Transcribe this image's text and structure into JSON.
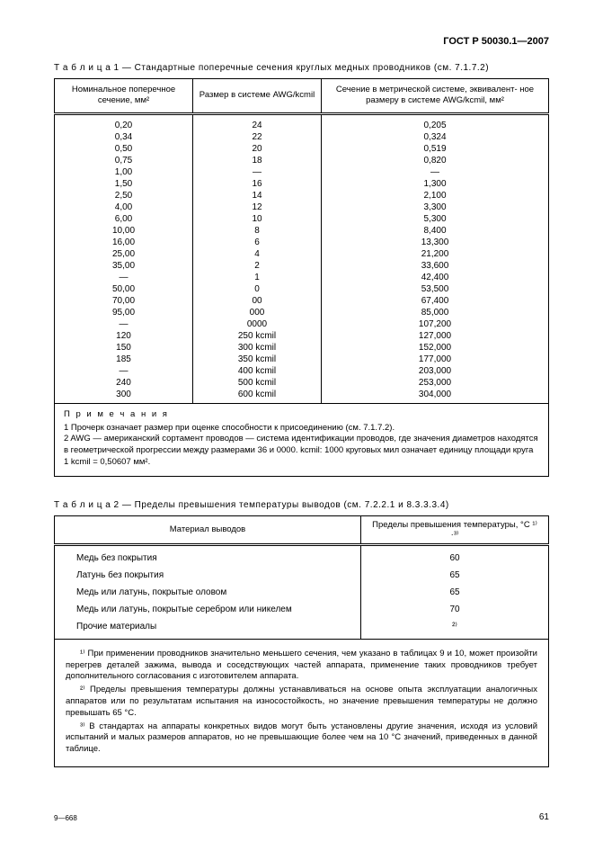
{
  "doc_id": "ГОСТ Р 50030.1—2007",
  "table1": {
    "caption": "Т а б л и ц а  1 — Стандартные поперечные сечения круглых медных проводников (см. 7.1.7.2)",
    "headers": {
      "c1": "Номинальное поперечное\nсечение, мм²",
      "c2": "Размер в системе\nAWG/kcmil",
      "c3": "Сечение в метрической системе, эквивалент-\nное размеру в системе AWG/kcmil, мм²"
    },
    "rows": [
      {
        "a": "0,20",
        "b": "24",
        "c": "0,205"
      },
      {
        "a": "0,34",
        "b": "22",
        "c": "0,324"
      },
      {
        "a": "0,50",
        "b": "20",
        "c": "0,519"
      },
      {
        "a": "0,75",
        "b": "18",
        "c": "0,820"
      },
      {
        "a": "1,00",
        "b": "—",
        "c": "—"
      },
      {
        "a": "1,50",
        "b": "16",
        "c": "1,300"
      },
      {
        "a": "2,50",
        "b": "14",
        "c": "2,100"
      },
      {
        "a": "4,00",
        "b": "12",
        "c": "3,300"
      },
      {
        "a": "6,00",
        "b": "10",
        "c": "5,300"
      },
      {
        "a": "10,00",
        "b": "8",
        "c": "8,400"
      },
      {
        "a": "16,00",
        "b": "6",
        "c": "13,300"
      },
      {
        "a": "25,00",
        "b": "4",
        "c": "21,200"
      },
      {
        "a": "35,00",
        "b": "2",
        "c": "33,600"
      },
      {
        "a": "—",
        "b": "1",
        "c": "42,400"
      },
      {
        "a": "50,00",
        "b": "0",
        "c": "53,500"
      },
      {
        "a": "70,00",
        "b": "00",
        "c": "67,400"
      },
      {
        "a": "95,00",
        "b": "000",
        "c": "85,000"
      },
      {
        "a": "—",
        "b": "0000",
        "c": "107,200"
      },
      {
        "a": "120",
        "b": "250 kcmil",
        "c": "127,000"
      },
      {
        "a": "150",
        "b": "300 kcmil",
        "c": "152,000"
      },
      {
        "a": "185",
        "b": "350 kcmil",
        "c": "177,000"
      },
      {
        "a": "—",
        "b": "400 kcmil",
        "c": "203,000"
      },
      {
        "a": "240",
        "b": "500 kcmil",
        "c": "253,000"
      },
      {
        "a": "300",
        "b": "600 kcmil",
        "c": "304,000"
      }
    ],
    "notes_title": "П р и м е ч а н и я",
    "note1": "1 Прочерк означает размер при оценке способности к присоединению  (см. 7.1.7.2).",
    "note2": "2  AWG — американский сортамент проводов — система идентификации проводов, где значения диаметров находятся в геометрической прогрессии между размерами  36 и 0000. kcmil: 1000 круговых мил означает единицу площади круга 1 kcmil = 0,50607 мм²."
  },
  "table2": {
    "caption": "Т а б л и ц а  2  — Пределы превышения температуры выводов (см. 7.2.2.1 и 8.3.3.3.4)",
    "headers": {
      "c1": "Материал выводов",
      "c2": "Пределы превышения температуры,  °С ¹⁾·³⁾"
    },
    "rows": [
      {
        "m": "Медь без покрытия",
        "v": "60"
      },
      {
        "m": "Латунь без покрытия",
        "v": "65"
      },
      {
        "m": "Медь или латунь, покрытые оловом",
        "v": "65"
      },
      {
        "m": "Медь или латунь, покрытые серебром или никелем",
        "v": "70"
      },
      {
        "m": "Прочие материалы",
        "v": "²⁾"
      }
    ],
    "fn1": "¹⁾ При применении проводников значительно меньшего сечения, чем указано в таблицах 9 и 10, может произойти перегрев деталей зажима, вывода и соседствующих частей аппарата, применение таких проводников требует дополнительного согласования с изготовителем аппарата.",
    "fn2": "²⁾ Пределы превышения температуры  должны устанавливаться на основе опыта эксплуатации аналогичных аппаратов  или по результатам испытания на износостойкость, но значение превышения температуры не должно превышать  65 °С.",
    "fn3": "³⁾ В стандартах на аппараты конкретных видов могут быть установлены другие значения, исходя из условий испытаний и  малых размеров аппаратов, но не превышающие более чем на 10 °С значений, приведенных в данной таблице."
  },
  "footer_left": "9—668",
  "page_number": "61"
}
